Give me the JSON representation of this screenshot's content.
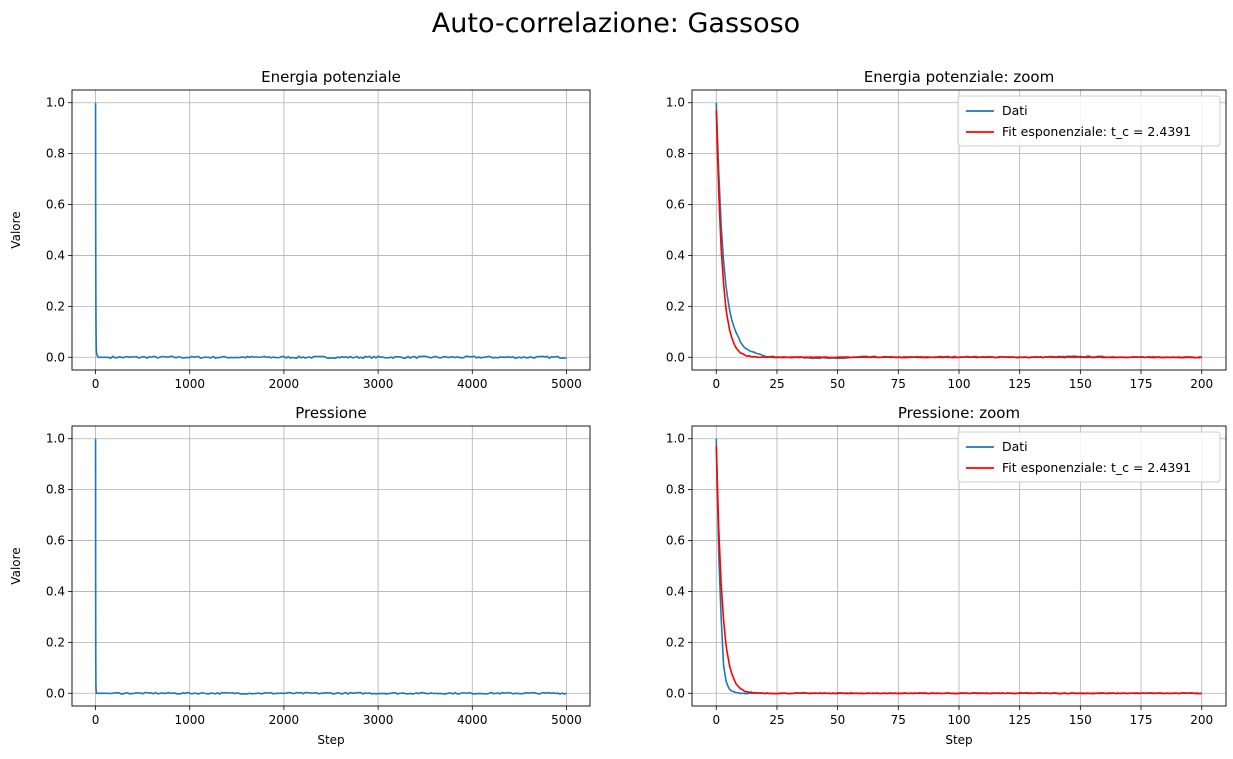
{
  "figure": {
    "suptitle": "Auto-correlazione: Gassoso"
  },
  "chart_data": [
    {
      "type": "line",
      "title": "Energia potenziale",
      "xlabel": "",
      "ylabel": "Valore",
      "xlim": [
        -250,
        5250
      ],
      "ylim": [
        -0.05,
        1.05
      ],
      "xticks": [
        0,
        1000,
        2000,
        3000,
        4000,
        5000
      ],
      "yticks": [
        0.0,
        0.2,
        0.4,
        0.6,
        0.8,
        1.0
      ],
      "ytick_labels": [
        "0.0",
        "0.2",
        "0.4",
        "0.6",
        "0.8",
        "1.0"
      ],
      "grid": true,
      "legend": null,
      "series": [
        {
          "color": "#1f77b4",
          "x": [
            0,
            1,
            2,
            3,
            4,
            5,
            6,
            8,
            10,
            15,
            20,
            30,
            50,
            100,
            500,
            1000,
            1500,
            2000,
            2500,
            3000,
            3500,
            4000,
            4500,
            5000
          ],
          "y": [
            1.0,
            0.66,
            0.44,
            0.29,
            0.19,
            0.13,
            0.08,
            0.04,
            0.02,
            0.01,
            0.005,
            0.0,
            0.0,
            0.0,
            0.0,
            0.0,
            0.0,
            0.0,
            0.0,
            0.0,
            0.0,
            0.0,
            0.0,
            0.0
          ],
          "noise": 0.004
        }
      ]
    },
    {
      "type": "line",
      "title": "Energia potenziale: zoom",
      "xlabel": "",
      "ylabel": "",
      "xlim": [
        -10,
        210
      ],
      "ylim": [
        -0.05,
        1.05
      ],
      "xticks": [
        0,
        25,
        50,
        75,
        100,
        125,
        150,
        175,
        200
      ],
      "yticks": [
        0.0,
        0.2,
        0.4,
        0.6,
        0.8,
        1.0
      ],
      "ytick_labels": [
        "0.0",
        "0.2",
        "0.4",
        "0.6",
        "0.8",
        "1.0"
      ],
      "grid": true,
      "legend": "top-right",
      "series": [
        {
          "name": "Dati",
          "color": "#1f77b4",
          "x": [
            0,
            1,
            2,
            3,
            4,
            5,
            6,
            8,
            10,
            12,
            15,
            20,
            25,
            30,
            40,
            50,
            60,
            75,
            100,
            125,
            150,
            175,
            200
          ],
          "y": [
            1.0,
            0.73,
            0.52,
            0.38,
            0.28,
            0.21,
            0.16,
            0.1,
            0.06,
            0.035,
            0.02,
            0.005,
            0.0,
            0.0,
            -0.002,
            -0.005,
            0.002,
            0.0,
            0.002,
            0.0,
            0.003,
            0.0,
            0.0
          ],
          "noise": 0.002
        },
        {
          "name": "Fit esponenziale: t_c = 2.4391",
          "color": "#ff0000",
          "x": [
            0,
            1,
            2,
            3,
            4,
            5,
            6,
            8,
            10,
            12,
            15,
            20,
            25,
            30,
            50,
            75,
            100,
            125,
            150,
            175,
            200
          ],
          "y": [
            0.97,
            0.65,
            0.43,
            0.29,
            0.19,
            0.13,
            0.085,
            0.038,
            0.017,
            0.007,
            0.002,
            0.0,
            0.0,
            0.0,
            0.0,
            0.0,
            0.0,
            0.0,
            0.0,
            0.0,
            0.0
          ],
          "noise": 0.0015
        }
      ]
    },
    {
      "type": "line",
      "title": "Pressione",
      "xlabel": "Step",
      "ylabel": "Valore",
      "xlim": [
        -250,
        5250
      ],
      "ylim": [
        -0.05,
        1.05
      ],
      "xticks": [
        0,
        1000,
        2000,
        3000,
        4000,
        5000
      ],
      "yticks": [
        0.0,
        0.2,
        0.4,
        0.6,
        0.8,
        1.0
      ],
      "ytick_labels": [
        "0.0",
        "0.2",
        "0.4",
        "0.6",
        "0.8",
        "1.0"
      ],
      "grid": true,
      "legend": null,
      "series": [
        {
          "color": "#1f77b4",
          "x": [
            0,
            1,
            2,
            3,
            4,
            5,
            6,
            8,
            10,
            20,
            50,
            100,
            500,
            1000,
            1500,
            2000,
            2500,
            3000,
            3500,
            4000,
            4500,
            5000
          ],
          "y": [
            1.0,
            0.45,
            0.2,
            0.09,
            0.04,
            0.02,
            0.01,
            0.005,
            0.0,
            0.0,
            0.0,
            0.0,
            0.0,
            0.0,
            0.0,
            0.0,
            0.0,
            0.0,
            0.0,
            0.0,
            0.0,
            0.0
          ],
          "noise": 0.003
        }
      ]
    },
    {
      "type": "line",
      "title": "Pressione: zoom",
      "xlabel": "Step",
      "ylabel": "",
      "xlim": [
        -10,
        210
      ],
      "ylim": [
        -0.05,
        1.05
      ],
      "xticks": [
        0,
        25,
        50,
        75,
        100,
        125,
        150,
        175,
        200
      ],
      "yticks": [
        0.0,
        0.2,
        0.4,
        0.6,
        0.8,
        1.0
      ],
      "ytick_labels": [
        "0.0",
        "0.2",
        "0.4",
        "0.6",
        "0.8",
        "1.0"
      ],
      "grid": true,
      "legend": "top-right",
      "series": [
        {
          "name": "Dati",
          "color": "#1f77b4",
          "x": [
            0,
            1,
            2,
            3,
            4,
            5,
            6,
            8,
            10,
            15,
            20,
            30,
            50,
            75,
            100,
            125,
            150,
            175,
            200
          ],
          "y": [
            1.0,
            0.55,
            0.3,
            0.11,
            0.05,
            0.02,
            0.01,
            0.004,
            0.0,
            0.0,
            0.0,
            0.0,
            0.0,
            0.0,
            0.0,
            0.0,
            0.0,
            0.0,
            0.0
          ],
          "noise": 0.0015
        },
        {
          "name": "Fit esponenziale: t_c = 2.4391",
          "color": "#ff0000",
          "x": [
            0,
            1,
            2,
            3,
            4,
            5,
            6,
            8,
            10,
            12,
            15,
            20,
            25,
            50,
            75,
            100,
            125,
            150,
            175,
            200
          ],
          "y": [
            0.97,
            0.65,
            0.43,
            0.29,
            0.19,
            0.13,
            0.085,
            0.038,
            0.017,
            0.007,
            0.002,
            0.0,
            0.0,
            0.0,
            0.0,
            0.0,
            0.0,
            0.0,
            0.0,
            0.0
          ],
          "noise": 0.0015
        }
      ]
    }
  ]
}
